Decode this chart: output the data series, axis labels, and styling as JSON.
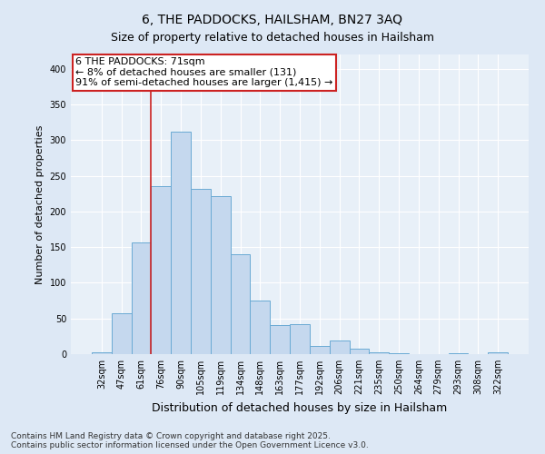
{
  "title": "6, THE PADDOCKS, HAILSHAM, BN27 3AQ",
  "subtitle": "Size of property relative to detached houses in Hailsham",
  "xlabel": "Distribution of detached houses by size in Hailsham",
  "ylabel": "Number of detached properties",
  "categories": [
    "32sqm",
    "47sqm",
    "61sqm",
    "76sqm",
    "90sqm",
    "105sqm",
    "119sqm",
    "134sqm",
    "148sqm",
    "163sqm",
    "177sqm",
    "192sqm",
    "206sqm",
    "221sqm",
    "235sqm",
    "250sqm",
    "264sqm",
    "279sqm",
    "293sqm",
    "308sqm",
    "322sqm"
  ],
  "values": [
    2,
    57,
    156,
    235,
    312,
    231,
    222,
    140,
    75,
    41,
    42,
    12,
    19,
    8,
    3,
    1,
    0,
    0,
    1,
    0,
    3
  ],
  "bar_color": "#c5d8ee",
  "bar_edge_color": "#6aaad4",
  "annotation_text_line1": "6 THE PADDOCKS: 71sqm",
  "annotation_text_line2": "← 8% of detached houses are smaller (131)",
  "annotation_text_line3": "91% of semi-detached houses are larger (1,415) →",
  "annotation_box_facecolor": "#ffffff",
  "annotation_box_edgecolor": "#cc2222",
  "vline_color": "#cc2222",
  "vline_x_index": 2.5,
  "footer": "Contains HM Land Registry data © Crown copyright and database right 2025.\nContains public sector information licensed under the Open Government Licence v3.0.",
  "fig_facecolor": "#dde8f5",
  "ax_facecolor": "#e8f0f8",
  "ylim": [
    0,
    420
  ],
  "yticks": [
    0,
    50,
    100,
    150,
    200,
    250,
    300,
    350,
    400
  ],
  "title_fontsize": 10,
  "subtitle_fontsize": 9,
  "axis_label_fontsize": 8,
  "tick_fontsize": 7,
  "annotation_fontsize": 8,
  "footer_fontsize": 6.5
}
